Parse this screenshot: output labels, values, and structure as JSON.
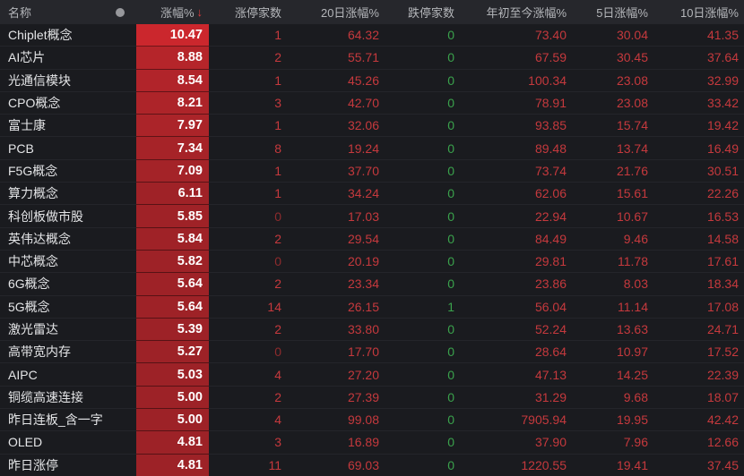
{
  "header": {
    "name": "名称",
    "dot_icon": "circle-indicator",
    "change": "涨幅%",
    "sort_arrow": "↓",
    "limit_up": "涨停家数",
    "d20": "20日涨幅%",
    "limit_down": "跌停家数",
    "ytd": "年初至今涨幅%",
    "d5": "5日涨幅%",
    "d10": "10日涨幅%"
  },
  "colors": {
    "page_bg": "#17181c",
    "header_bg": "#26272c",
    "header_text": "#b4b6ba",
    "row_bg": "#1a1b1f",
    "row_divider": "#24252a",
    "name_text": "#e4e5e7",
    "red_text": "#c5393d",
    "dim_red_text": "#8e2b2d",
    "green_text": "#3aa24c",
    "cell_red_low": "#9d2227",
    "cell_red_high": "#cb272d",
    "cell_text": "#ffffff",
    "sort_arrow": "#e23c3e",
    "dot_icon": "#97989c"
  },
  "chart_data": {
    "type": "table",
    "columns": [
      "名称",
      "涨幅%",
      "涨停家数",
      "20日涨幅%",
      "跌停家数",
      "年初至今涨幅%",
      "5日涨幅%",
      "10日涨幅%"
    ],
    "sorted_by": "涨幅% descending",
    "rows": [
      {
        "name": "Chiplet概念",
        "change": "10.47",
        "limit_up": "1",
        "d20": "64.32",
        "limit_down": "0",
        "ytd": "73.40",
        "d5": "30.04",
        "d10": "41.35"
      },
      {
        "name": "AI芯片",
        "change": "8.88",
        "limit_up": "2",
        "d20": "55.71",
        "limit_down": "0",
        "ytd": "67.59",
        "d5": "30.45",
        "d10": "37.64"
      },
      {
        "name": "光通信模块",
        "change": "8.54",
        "limit_up": "1",
        "d20": "45.26",
        "limit_down": "0",
        "ytd": "100.34",
        "d5": "23.08",
        "d10": "32.99"
      },
      {
        "name": "CPO概念",
        "change": "8.21",
        "limit_up": "3",
        "d20": "42.70",
        "limit_down": "0",
        "ytd": "78.91",
        "d5": "23.08",
        "d10": "33.42"
      },
      {
        "name": "富士康",
        "change": "7.97",
        "limit_up": "1",
        "d20": "32.06",
        "limit_down": "0",
        "ytd": "93.85",
        "d5": "15.74",
        "d10": "19.42"
      },
      {
        "name": "PCB",
        "change": "7.34",
        "limit_up": "8",
        "d20": "19.24",
        "limit_down": "0",
        "ytd": "89.48",
        "d5": "13.74",
        "d10": "16.49"
      },
      {
        "name": "F5G概念",
        "change": "7.09",
        "limit_up": "1",
        "d20": "37.70",
        "limit_down": "0",
        "ytd": "73.74",
        "d5": "21.76",
        "d10": "30.51"
      },
      {
        "name": "算力概念",
        "change": "6.11",
        "limit_up": "1",
        "d20": "34.24",
        "limit_down": "0",
        "ytd": "62.06",
        "d5": "15.61",
        "d10": "22.26"
      },
      {
        "name": "科创板做市股",
        "change": "5.85",
        "limit_up": "0",
        "d20": "17.03",
        "limit_down": "0",
        "ytd": "22.94",
        "d5": "10.67",
        "d10": "16.53"
      },
      {
        "name": "英伟达概念",
        "change": "5.84",
        "limit_up": "2",
        "d20": "29.54",
        "limit_down": "0",
        "ytd": "84.49",
        "d5": "9.46",
        "d10": "14.58"
      },
      {
        "name": "中芯概念",
        "change": "5.82",
        "limit_up": "0",
        "d20": "20.19",
        "limit_down": "0",
        "ytd": "29.81",
        "d5": "11.78",
        "d10": "17.61"
      },
      {
        "name": "6G概念",
        "change": "5.64",
        "limit_up": "2",
        "d20": "23.34",
        "limit_down": "0",
        "ytd": "23.86",
        "d5": "8.03",
        "d10": "18.34"
      },
      {
        "name": "5G概念",
        "change": "5.64",
        "limit_up": "14",
        "d20": "26.15",
        "limit_down": "1",
        "ytd": "56.04",
        "d5": "11.14",
        "d10": "17.08"
      },
      {
        "name": "激光雷达",
        "change": "5.39",
        "limit_up": "2",
        "d20": "33.80",
        "limit_down": "0",
        "ytd": "52.24",
        "d5": "13.63",
        "d10": "24.71"
      },
      {
        "name": "高带宽内存",
        "change": "5.27",
        "limit_up": "0",
        "d20": "17.70",
        "limit_down": "0",
        "ytd": "28.64",
        "d5": "10.97",
        "d10": "17.52"
      },
      {
        "name": "AIPC",
        "change": "5.03",
        "limit_up": "4",
        "d20": "27.20",
        "limit_down": "0",
        "ytd": "47.13",
        "d5": "14.25",
        "d10": "22.39"
      },
      {
        "name": "铜缆高速连接",
        "change": "5.00",
        "limit_up": "2",
        "d20": "27.39",
        "limit_down": "0",
        "ytd": "31.29",
        "d5": "9.68",
        "d10": "18.07"
      },
      {
        "name": "昨日连板_含一字",
        "change": "5.00",
        "limit_up": "4",
        "d20": "99.08",
        "limit_down": "0",
        "ytd": "7905.94",
        "d5": "19.95",
        "d10": "42.42"
      },
      {
        "name": "OLED",
        "change": "4.81",
        "limit_up": "3",
        "d20": "16.89",
        "limit_down": "0",
        "ytd": "37.90",
        "d5": "7.96",
        "d10": "12.66"
      },
      {
        "name": "昨日涨停",
        "change": "4.81",
        "limit_up": "11",
        "d20": "69.03",
        "limit_down": "0",
        "ytd": "1220.55",
        "d5": "19.41",
        "d10": "37.45"
      }
    ]
  }
}
